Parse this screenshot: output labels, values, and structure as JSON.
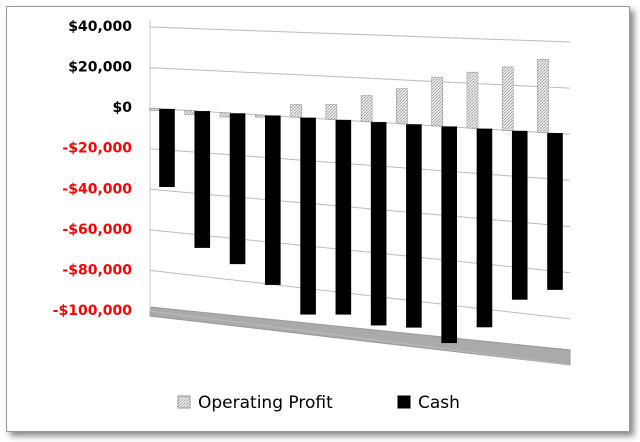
{
  "chart_data": {
    "type": "bar3d",
    "categories": [
      null,
      null,
      null,
      null,
      null,
      null,
      null,
      null,
      null,
      null,
      null,
      null
    ],
    "series": [
      {
        "name": "Operating Profit",
        "color": "#d0d0d0",
        "values": [
          -1000,
          -2000,
          -2000,
          -1000,
          6000,
          7000,
          12000,
          16000,
          22000,
          25000,
          28000,
          32000
        ]
      },
      {
        "name": "Cash",
        "color": "#000000",
        "values": [
          -38000,
          -66000,
          -72000,
          -80000,
          -92000,
          -90000,
          -93000,
          -92000,
          -97000,
          -88000,
          -74000,
          -68000
        ]
      }
    ],
    "ylim": [
      -100000,
      40000
    ],
    "yticks": [
      {
        "value": 40000,
        "label": "$40,000"
      },
      {
        "value": 20000,
        "label": "$20,000"
      },
      {
        "value": 0,
        "label": "$0"
      },
      {
        "value": -20000,
        "label": "-$20,000"
      },
      {
        "value": -40000,
        "label": "-$40,000"
      },
      {
        "value": -60000,
        "label": "-$60,000"
      },
      {
        "value": -80000,
        "label": "-$80,000"
      },
      {
        "value": -100000,
        "label": "-$100,000"
      }
    ],
    "negative_tick_color": "#ff0000",
    "grid": true
  }
}
